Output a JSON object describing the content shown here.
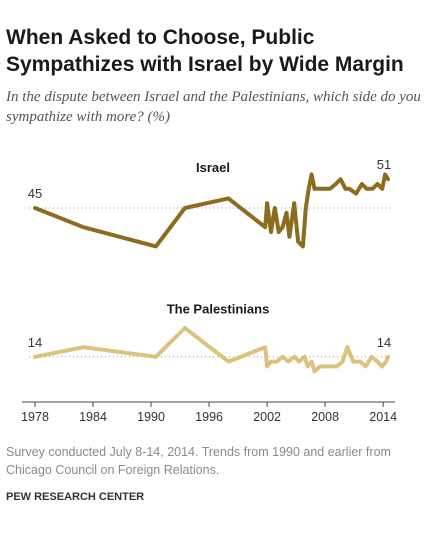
{
  "title": "When Asked to Choose, Public Sympathizes with Israel by Wide Margin",
  "subtitle": "In the dispute between Israel and the Palestinians, which side do you sympathize with more? (%)",
  "note": "Survey conducted July 8-14, 2014. Trends from 1990 and earlier from Chicago Council on Foreign Relations.",
  "source": "PEW RESEARCH CENTER",
  "colors": {
    "israel": "#8c6d1f",
    "palestinians": "#dcc27f",
    "axis": "#444444",
    "grid": "#999999"
  },
  "chart_data": {
    "type": "line",
    "x_ticks": [
      "1978",
      "1984",
      "1990",
      "1996",
      "2002",
      "2008",
      "2014"
    ],
    "xlim": [
      1978,
      2014.5
    ],
    "ylim": [
      5,
      55
    ],
    "grid": "dotted horizontal reference lines",
    "series": [
      {
        "name": "Israel",
        "x": [
          1978,
          1983,
          1990.5,
          1993.5,
          1998,
          2001.8,
          2002,
          2002.4,
          2002.8,
          2003.2,
          2003.6,
          2004,
          2004.3,
          2004.8,
          2005.2,
          2005.7,
          2006,
          2006.3,
          2006.6,
          2006.9,
          2007.4,
          2007.9,
          2008.5,
          2009.1,
          2009.6,
          2010.1,
          2010.5,
          2011.2,
          2011.8,
          2012.3,
          2012.9,
          2013.4,
          2013.9,
          2014.2,
          2014.5
        ],
        "values": [
          45,
          41,
          37,
          45,
          47,
          41,
          46,
          40,
          45,
          40,
          41,
          44,
          39,
          46,
          38,
          37,
          45,
          49,
          52,
          49,
          49,
          49,
          49,
          50,
          51,
          49,
          49,
          48,
          50,
          49,
          49,
          50,
          49,
          52,
          51
        ],
        "labels": [
          {
            "x": 1978,
            "y": 45,
            "text": "45"
          },
          {
            "x": 2014.5,
            "y": 51,
            "text": "51"
          }
        ],
        "series_label": "Israel"
      },
      {
        "name": "The Palestinians",
        "x": [
          1978,
          1983,
          1990.5,
          1993.5,
          1998,
          2001.8,
          2002,
          2002.4,
          2003,
          2003.6,
          2004.2,
          2004.8,
          2005.3,
          2005.9,
          2006.2,
          2006.6,
          2006.9,
          2007.5,
          2008.5,
          2009.2,
          2009.8,
          2010.3,
          2010.9,
          2011.6,
          2012.2,
          2012.8,
          2013.4,
          2013.9,
          2014.3,
          2014.5
        ],
        "values": [
          14,
          16,
          14,
          20,
          13,
          16,
          12,
          13,
          13,
          14,
          13,
          14,
          13,
          14,
          12,
          13,
          11,
          12,
          12,
          12,
          13,
          16,
          13,
          13,
          12,
          14,
          13,
          12,
          13,
          14
        ],
        "labels": [
          {
            "x": 1978,
            "y": 14,
            "text": "14"
          },
          {
            "x": 2014.5,
            "y": 14,
            "text": "14"
          }
        ],
        "series_label": "The Palestinians"
      }
    ]
  }
}
